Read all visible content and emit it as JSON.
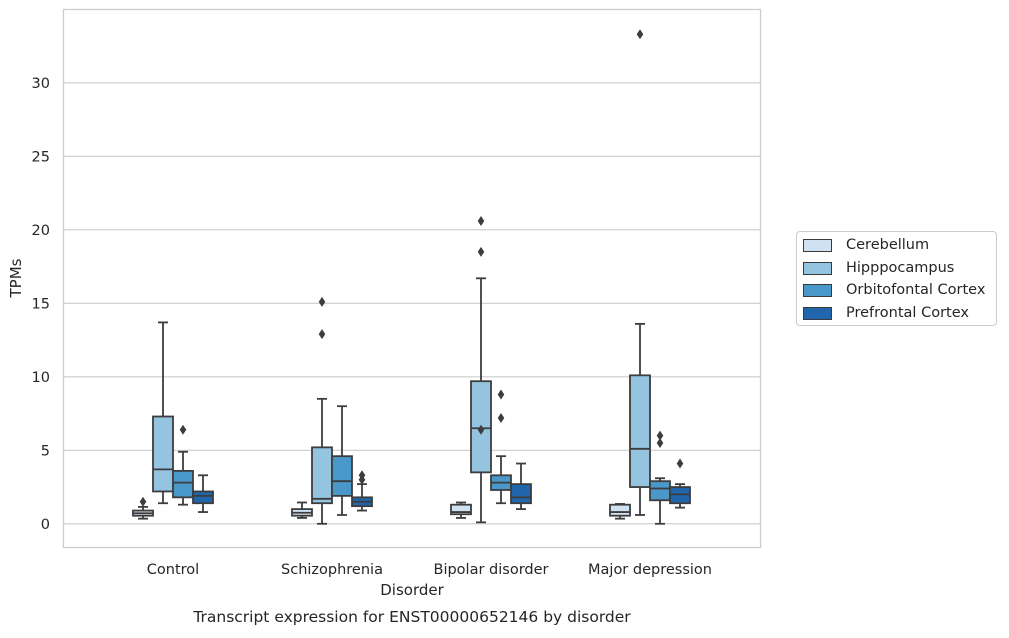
{
  "caption": "Transcript expression for ENST00000652146 by disorder",
  "chart_data": {
    "type": "box",
    "xlabel": "Disorder",
    "ylabel": "TPMs",
    "ylim": [
      -1.6,
      34.5
    ],
    "yticks": [
      0,
      5,
      10,
      15,
      20,
      25,
      30
    ],
    "grid": "horizontal",
    "legend_position": "right",
    "categories": [
      "Control",
      "Schizophrenia",
      "Bipolar disorder",
      "Major depression"
    ],
    "series": [
      {
        "name": "Cerebellum",
        "color": "#d0e1f2",
        "boxes": [
          {
            "whisker_low": 0.35,
            "q1": 0.55,
            "median": 0.72,
            "q3": 0.9,
            "whisker_high": 1.15,
            "outliers": [
              1.5
            ]
          },
          {
            "whisker_low": 0.4,
            "q1": 0.55,
            "median": 0.75,
            "q3": 1.0,
            "whisker_high": 1.45,
            "outliers": []
          },
          {
            "whisker_low": 0.4,
            "q1": 0.65,
            "median": 0.8,
            "q3": 1.3,
            "whisker_high": 1.45,
            "outliers": []
          },
          {
            "whisker_low": 0.35,
            "q1": 0.55,
            "median": 0.8,
            "q3": 1.3,
            "whisker_high": 1.35,
            "outliers": []
          }
        ]
      },
      {
        "name": "Hipppocampus",
        "color": "#94c4df",
        "boxes": [
          {
            "whisker_low": 1.4,
            "q1": 2.2,
            "median": 3.7,
            "q3": 7.3,
            "whisker_high": 13.7,
            "outliers": []
          },
          {
            "whisker_low": 0.0,
            "q1": 1.4,
            "median": 1.7,
            "q3": 5.2,
            "whisker_high": 8.5,
            "outliers": [
              12.9,
              15.1
            ]
          },
          {
            "whisker_low": 0.1,
            "q1": 3.5,
            "median": 6.5,
            "q3": 9.7,
            "whisker_high": 16.7,
            "outliers": [
              6.4,
              18.5,
              20.6
            ]
          },
          {
            "whisker_low": 0.6,
            "q1": 2.5,
            "median": 5.1,
            "q3": 10.1,
            "whisker_high": 13.6,
            "outliers": [
              33.3
            ]
          }
        ]
      },
      {
        "name": "Orbitofontal Cortex",
        "color": "#4a98c9",
        "boxes": [
          {
            "whisker_low": 1.3,
            "q1": 1.8,
            "median": 2.8,
            "q3": 3.6,
            "whisker_high": 4.9,
            "outliers": [
              6.4
            ]
          },
          {
            "whisker_low": 0.6,
            "q1": 1.9,
            "median": 2.9,
            "q3": 4.6,
            "whisker_high": 8.0,
            "outliers": []
          },
          {
            "whisker_low": 1.4,
            "q1": 2.3,
            "median": 2.8,
            "q3": 3.3,
            "whisker_high": 4.6,
            "outliers": [
              7.2,
              8.8
            ]
          },
          {
            "whisker_low": 0.0,
            "q1": 1.6,
            "median": 2.4,
            "q3": 2.9,
            "whisker_high": 3.1,
            "outliers": [
              5.5,
              6.0
            ]
          }
        ]
      },
      {
        "name": "Prefrontal Cortex",
        "color": "#2166ac",
        "boxes": [
          {
            "whisker_low": 0.8,
            "q1": 1.4,
            "median": 1.9,
            "q3": 2.2,
            "whisker_high": 3.3,
            "outliers": []
          },
          {
            "whisker_low": 0.9,
            "q1": 1.2,
            "median": 1.5,
            "q3": 1.8,
            "whisker_high": 2.7,
            "outliers": [
              3.0,
              3.3
            ]
          },
          {
            "whisker_low": 1.0,
            "q1": 1.4,
            "median": 1.8,
            "q3": 2.7,
            "whisker_high": 4.1,
            "outliers": []
          },
          {
            "whisker_low": 1.1,
            "q1": 1.4,
            "median": 2.0,
            "q3": 2.5,
            "whisker_high": 2.7,
            "outliers": [
              4.1
            ]
          }
        ]
      }
    ]
  }
}
